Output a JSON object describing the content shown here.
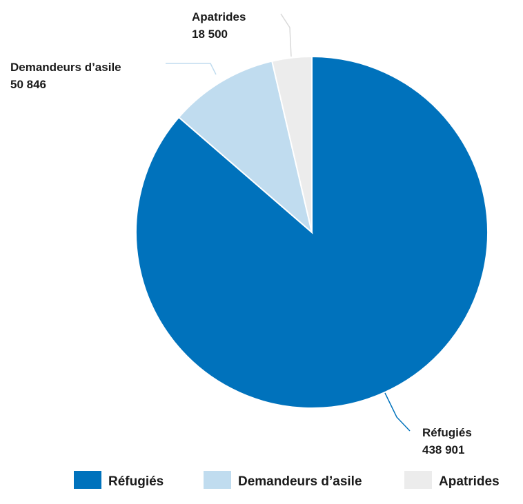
{
  "chart_data": {
    "type": "pie",
    "slices": [
      {
        "label": "Réfugiés",
        "value": 438901,
        "display_value": "438 901",
        "color": "#0072bc"
      },
      {
        "label": "Demandeurs d’asile",
        "value": 50846,
        "display_value": "50 846",
        "color": "#c0dcef"
      },
      {
        "label": "Apatrides",
        "value": 18500,
        "display_value": "18 500",
        "color": "#ececec"
      }
    ],
    "legend": {
      "placement": "bottom",
      "items": [
        "Réfugiés",
        "Demandeurs d’asile",
        "Apatrides"
      ]
    },
    "start": "top",
    "direction": "clockwise"
  }
}
